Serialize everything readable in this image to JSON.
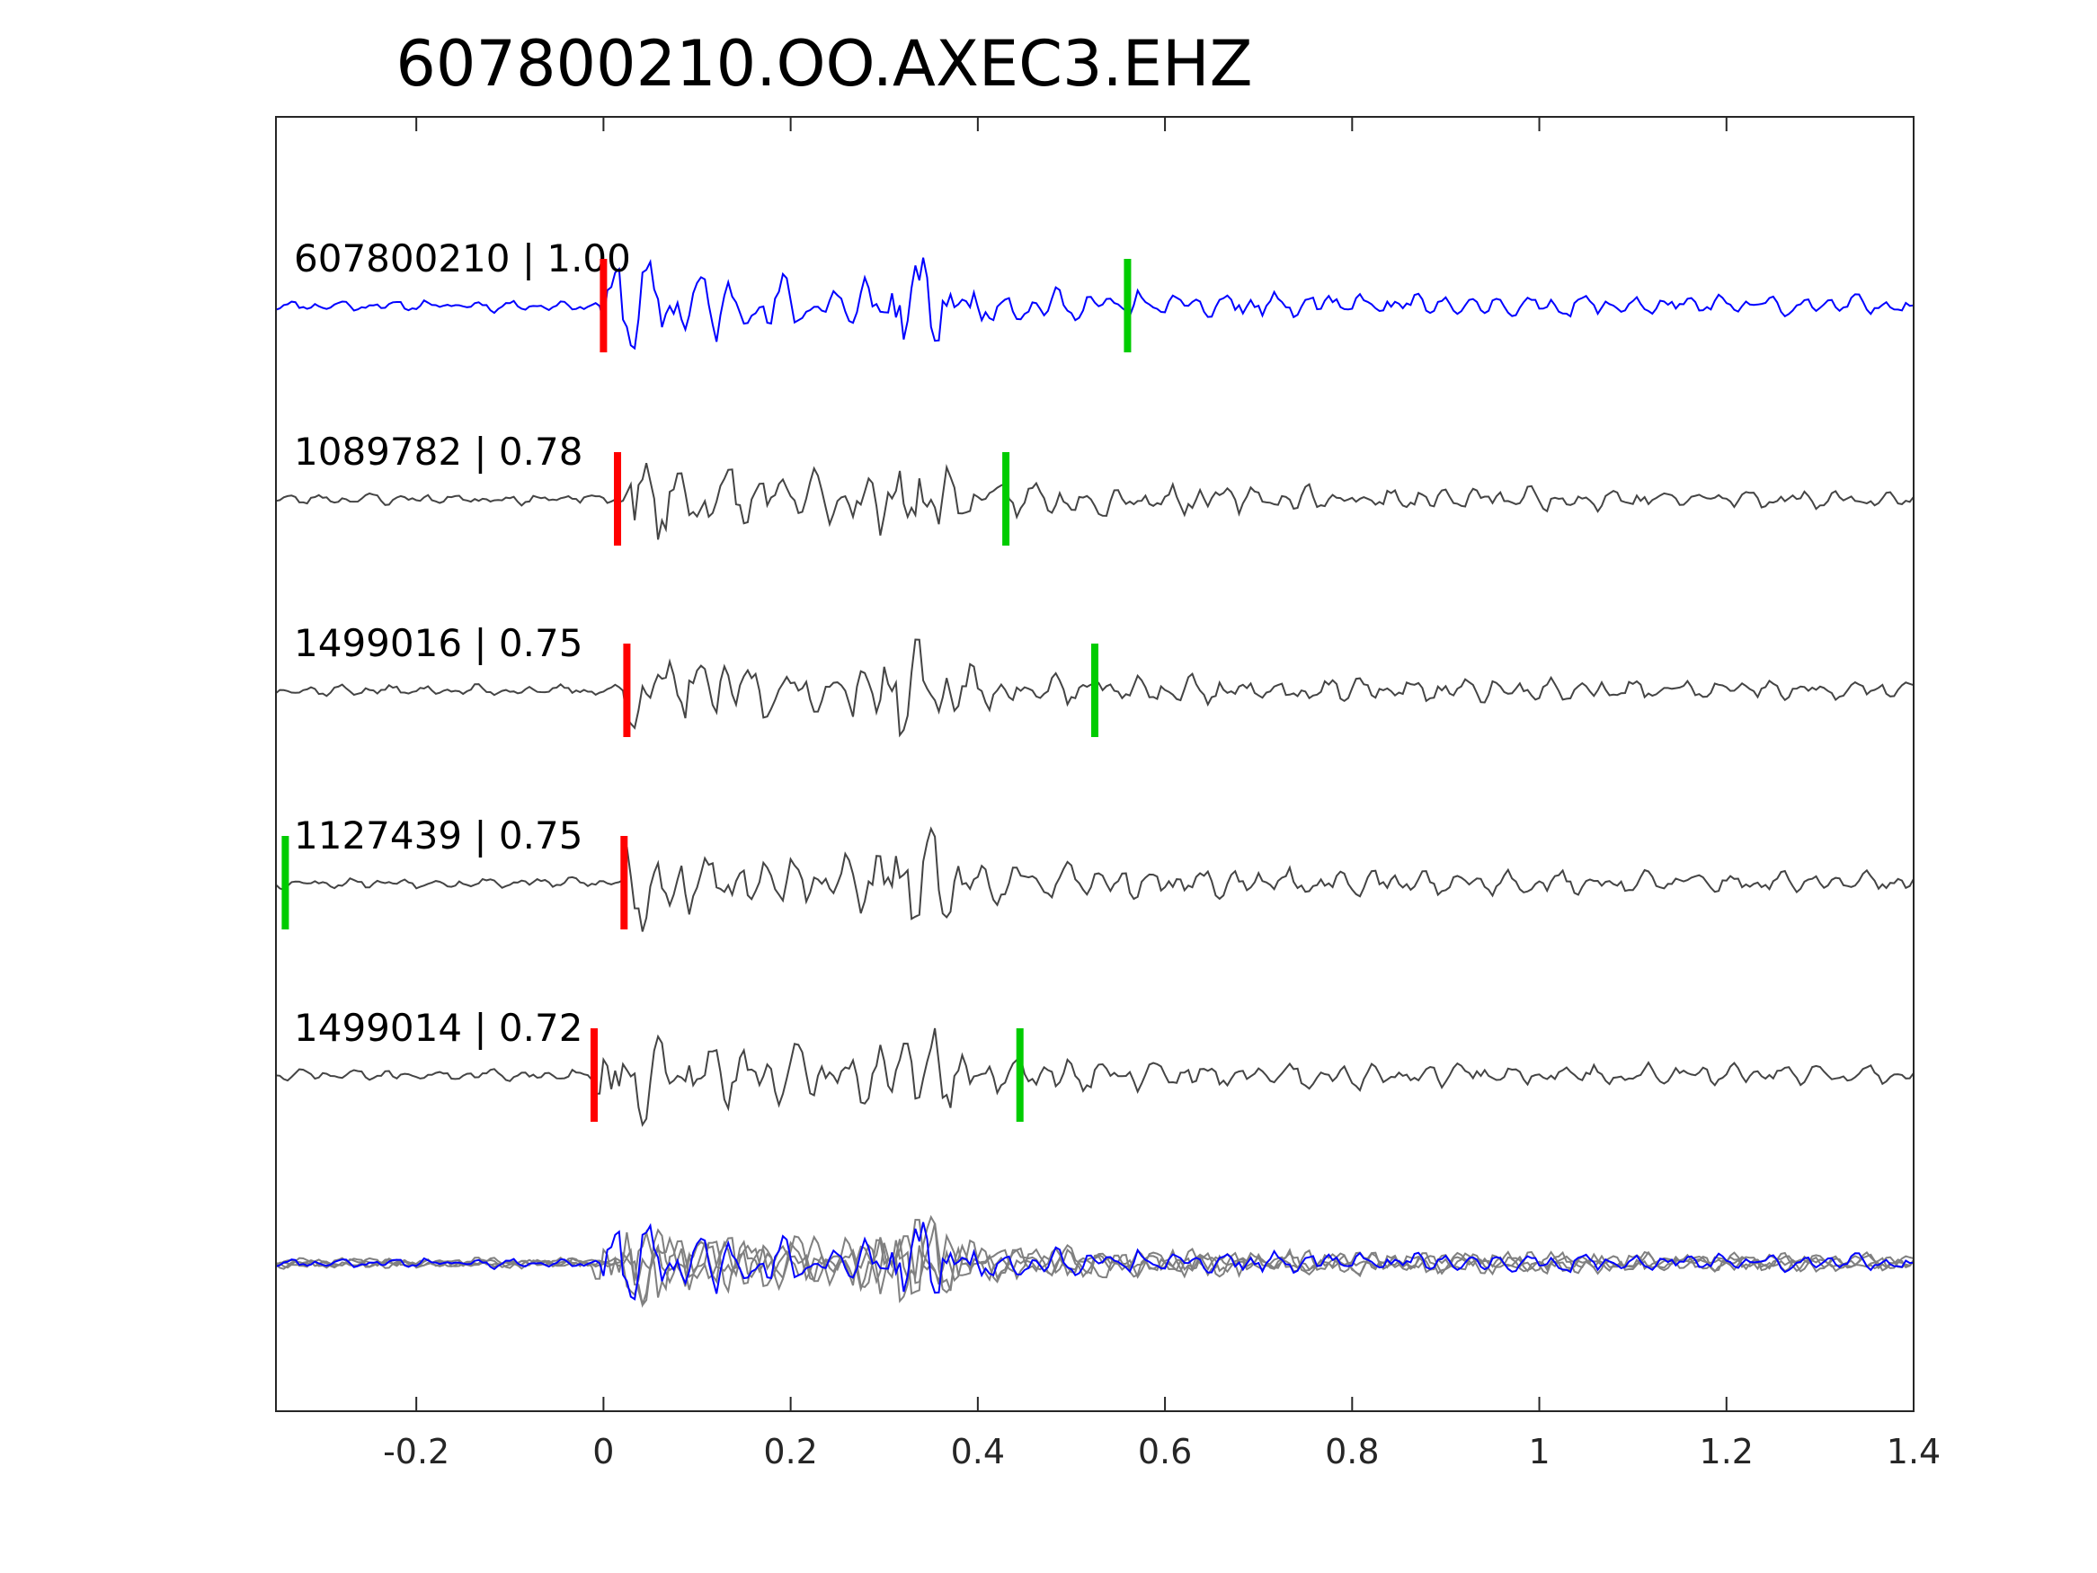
{
  "chart_data": {
    "type": "line",
    "title": "607800210.OO.AXEC3.EHZ",
    "xlabel": "",
    "ylabel": "",
    "xlim": [
      -0.35,
      1.4
    ],
    "xticks": [
      {
        "value": -0.2,
        "label": "-0.2"
      },
      {
        "value": 0,
        "label": "0"
      },
      {
        "value": 0.2,
        "label": "0.2"
      },
      {
        "value": 0.4,
        "label": "0.4"
      },
      {
        "value": 0.6,
        "label": "0.6"
      },
      {
        "value": 0.8,
        "label": "0.8"
      },
      {
        "value": 1,
        "label": "1"
      },
      {
        "value": 1.2,
        "label": "1.2"
      },
      {
        "value": 1.4,
        "label": "1.4"
      }
    ],
    "grid": false,
    "colors": {
      "template": "#0000ff",
      "match": "#444444",
      "overlay": "#808080",
      "p_pick": "#ff0000",
      "s_pick": "#00cc00",
      "axes": "#262626"
    },
    "traces": [
      {
        "label": "607800210 | 1.00",
        "event_id": "607800210",
        "cc": 1.0,
        "p_pick": 0.0,
        "s_pick": 0.56,
        "amplitude": 1.0,
        "onset": 0.0,
        "seed": 11,
        "color": "template"
      },
      {
        "label": "1089782 | 0.78",
        "event_id": "1089782",
        "cc": 0.78,
        "p_pick": 0.015,
        "s_pick": 0.43,
        "amplitude": 1.0,
        "onset": 0.015,
        "seed": 23,
        "color": "match"
      },
      {
        "label": "1499016 | 0.75",
        "event_id": "1499016",
        "cc": 0.75,
        "p_pick": 0.025,
        "s_pick": 0.525,
        "amplitude": 1.0,
        "onset": 0.025,
        "seed": 37,
        "color": "match"
      },
      {
        "label": "1127439 | 0.75",
        "event_id": "1127439",
        "cc": 0.75,
        "p_pick": 0.022,
        "s_pick": -0.34,
        "amplitude": 1.0,
        "onset": 0.022,
        "seed": 53,
        "color": "match"
      },
      {
        "label": "1499014 | 0.72",
        "event_id": "1499014",
        "cc": 0.72,
        "p_pick": -0.01,
        "s_pick": 0.445,
        "amplitude": 1.0,
        "onset": -0.01,
        "seed": 71,
        "color": "match"
      }
    ]
  }
}
